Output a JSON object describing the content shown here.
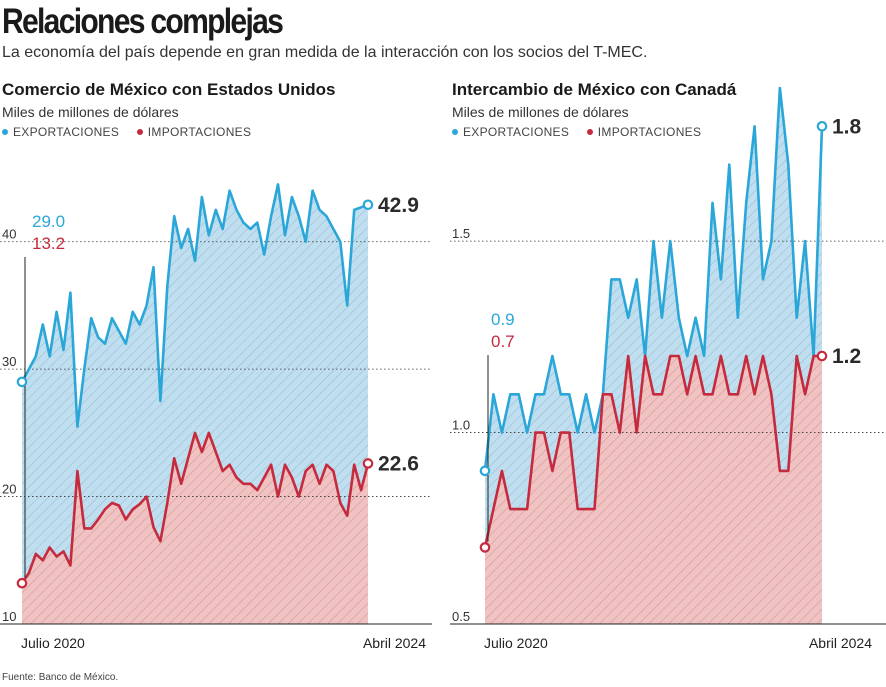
{
  "title": "Relaciones complejas",
  "subtitle": "La economía del país depende en gran medida de la interacción con los socios del T-MEC.",
  "source": "Fuente: Banco de México.",
  "colors": {
    "exports": "#2aa7d8",
    "imports": "#c62a3d",
    "exports_fill": "#bfdff0",
    "imports_fill": "#f0c2c2"
  },
  "chart_data": [
    {
      "type": "area",
      "title": "Comercio de México con Estados Unidos",
      "ylabel": "Miles de millones de dólares",
      "ylim": [
        10,
        45
      ],
      "yticks": [
        "10",
        "20",
        "30",
        "40"
      ],
      "ytick_values": [
        10,
        20,
        30,
        40
      ],
      "x_start_label": "Julio 2020",
      "x_end_label": "Abril 2024",
      "legend": [
        "EXPORTACIONES",
        "IMPORTACIONES"
      ],
      "start_labels": [
        "29.0",
        "13.2"
      ],
      "end_labels": [
        "42.9",
        "22.6"
      ],
      "series": [
        {
          "name": "EXPORTACIONES",
          "values": [
            29.0,
            30.0,
            31.0,
            33.5,
            31.0,
            34.5,
            31.5,
            36.0,
            25.5,
            30.0,
            34.0,
            32.5,
            32.0,
            34.0,
            33.0,
            32.0,
            34.5,
            33.5,
            35.0,
            38.0,
            27.5,
            36.5,
            42.0,
            39.5,
            41.0,
            38.5,
            43.5,
            40.5,
            42.5,
            41.0,
            44.0,
            42.5,
            41.5,
            41.0,
            41.5,
            39.0,
            42.0,
            44.5,
            40.5,
            43.5,
            42.0,
            40.0,
            44.0,
            42.5,
            42.0,
            41.0,
            40.0,
            35.0,
            42.5,
            42.7,
            42.9
          ]
        },
        {
          "name": "IMPORTACIONES",
          "values": [
            13.2,
            14.0,
            15.5,
            15.0,
            16.0,
            15.3,
            15.7,
            14.6,
            22.0,
            17.5,
            17.5,
            18.2,
            19.0,
            19.5,
            19.3,
            18.2,
            19.0,
            19.4,
            20.0,
            17.6,
            16.5,
            19.5,
            23.0,
            21.0,
            23.0,
            25.0,
            23.5,
            25.0,
            23.5,
            22.0,
            22.5,
            21.5,
            21.0,
            21.0,
            20.5,
            21.5,
            22.5,
            20.0,
            22.5,
            21.5,
            20.0,
            22.0,
            22.5,
            21.0,
            22.5,
            22.0,
            19.5,
            18.5,
            22.5,
            20.5,
            22.6
          ]
        }
      ]
    },
    {
      "type": "area",
      "title": "Intercambio de México con Canadá",
      "ylabel": "Miles de millones de dólares",
      "ylim": [
        0.5,
        2.0
      ],
      "yticks": [
        "0.5",
        "1.0",
        "1.5"
      ],
      "ytick_values": [
        0.5,
        1.0,
        1.5
      ],
      "x_start_label": "Julio 2020",
      "x_end_label": "Abril 2024",
      "legend": [
        "EXPORTACIONES",
        "IMPORTACIONES"
      ],
      "start_labels": [
        "0.9",
        "0.7"
      ],
      "end_labels": [
        "1.8",
        "1.2"
      ],
      "series": [
        {
          "name": "EXPORTACIONES",
          "values": [
            0.9,
            1.1,
            1.0,
            1.1,
            1.1,
            1.0,
            1.1,
            1.1,
            1.2,
            1.1,
            1.1,
            1.0,
            1.1,
            1.0,
            1.1,
            1.4,
            1.4,
            1.3,
            1.4,
            1.2,
            1.5,
            1.3,
            1.5,
            1.3,
            1.2,
            1.3,
            1.2,
            1.6,
            1.4,
            1.7,
            1.3,
            1.6,
            1.8,
            1.4,
            1.5,
            1.9,
            1.7,
            1.3,
            1.5,
            1.2,
            1.8
          ]
        },
        {
          "name": "IMPORTACIONES",
          "values": [
            0.7,
            0.8,
            0.9,
            0.8,
            0.8,
            0.8,
            1.0,
            1.0,
            0.9,
            1.0,
            1.0,
            0.8,
            0.8,
            0.8,
            1.1,
            1.1,
            1.0,
            1.2,
            1.0,
            1.2,
            1.1,
            1.1,
            1.2,
            1.2,
            1.1,
            1.2,
            1.1,
            1.1,
            1.2,
            1.1,
            1.1,
            1.2,
            1.1,
            1.2,
            1.1,
            0.9,
            0.9,
            1.2,
            1.1,
            1.2,
            1.2
          ]
        }
      ]
    }
  ]
}
